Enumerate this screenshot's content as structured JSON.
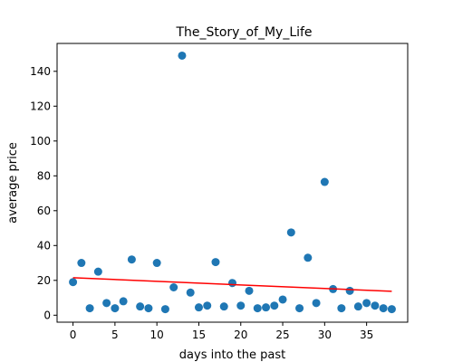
{
  "chart_data": {
    "type": "scatter",
    "title": "The_Story_of_My_Life",
    "xlabel": "days into the past",
    "ylabel": "average price",
    "xlim": [
      -1.9,
      39.9
    ],
    "ylim": [
      -4,
      156
    ],
    "xticks": [
      0,
      5,
      10,
      15,
      20,
      25,
      30,
      35
    ],
    "yticks": [
      0,
      20,
      40,
      60,
      80,
      100,
      120,
      140
    ],
    "grid": false,
    "legend": "none",
    "point_color": "#1f77b4",
    "line_color": "#ff0000",
    "series": [
      {
        "type": "scatter",
        "x": [
          0,
          1,
          2,
          3,
          4,
          5,
          6,
          7,
          8,
          9,
          10,
          11,
          12,
          13,
          14,
          15,
          16,
          17,
          18,
          19,
          20,
          21,
          22,
          23,
          24,
          25,
          26,
          27,
          28,
          29,
          30,
          31,
          32,
          33,
          34,
          35,
          36,
          37,
          38
        ],
        "y": [
          19,
          30,
          4,
          25,
          7,
          4,
          8,
          32,
          5,
          4,
          30,
          3.5,
          16,
          149,
          13,
          4.5,
          5.5,
          30.5,
          5,
          18.5,
          5.5,
          14,
          4,
          4.5,
          5.5,
          9,
          47.5,
          4,
          33,
          7,
          76.5,
          15,
          4,
          14,
          5,
          7,
          5.5,
          4,
          3.5
        ]
      },
      {
        "type": "line",
        "x": [
          0,
          38
        ],
        "y": [
          21.5,
          13.7
        ]
      }
    ]
  }
}
